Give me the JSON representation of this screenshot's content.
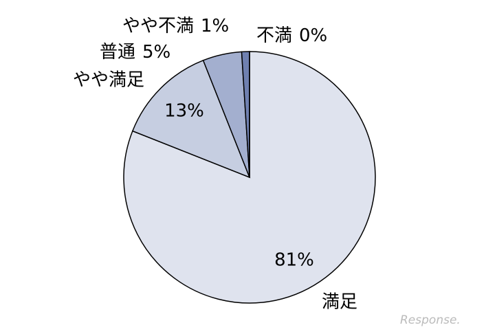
{
  "chart_data": {
    "type": "pie",
    "categories": [
      "満足",
      "やや満足",
      "普通",
      "やや不満",
      "不満"
    ],
    "values": [
      81,
      13,
      5,
      1,
      0
    ],
    "value_labels": [
      "81%",
      "13%",
      "5%",
      "1%",
      "0%"
    ],
    "colors": [
      "#dfe3ee",
      "#c6cee1",
      "#a3afcf",
      "#6f80b0",
      "#2c3c6e"
    ]
  },
  "watermark": "Response."
}
